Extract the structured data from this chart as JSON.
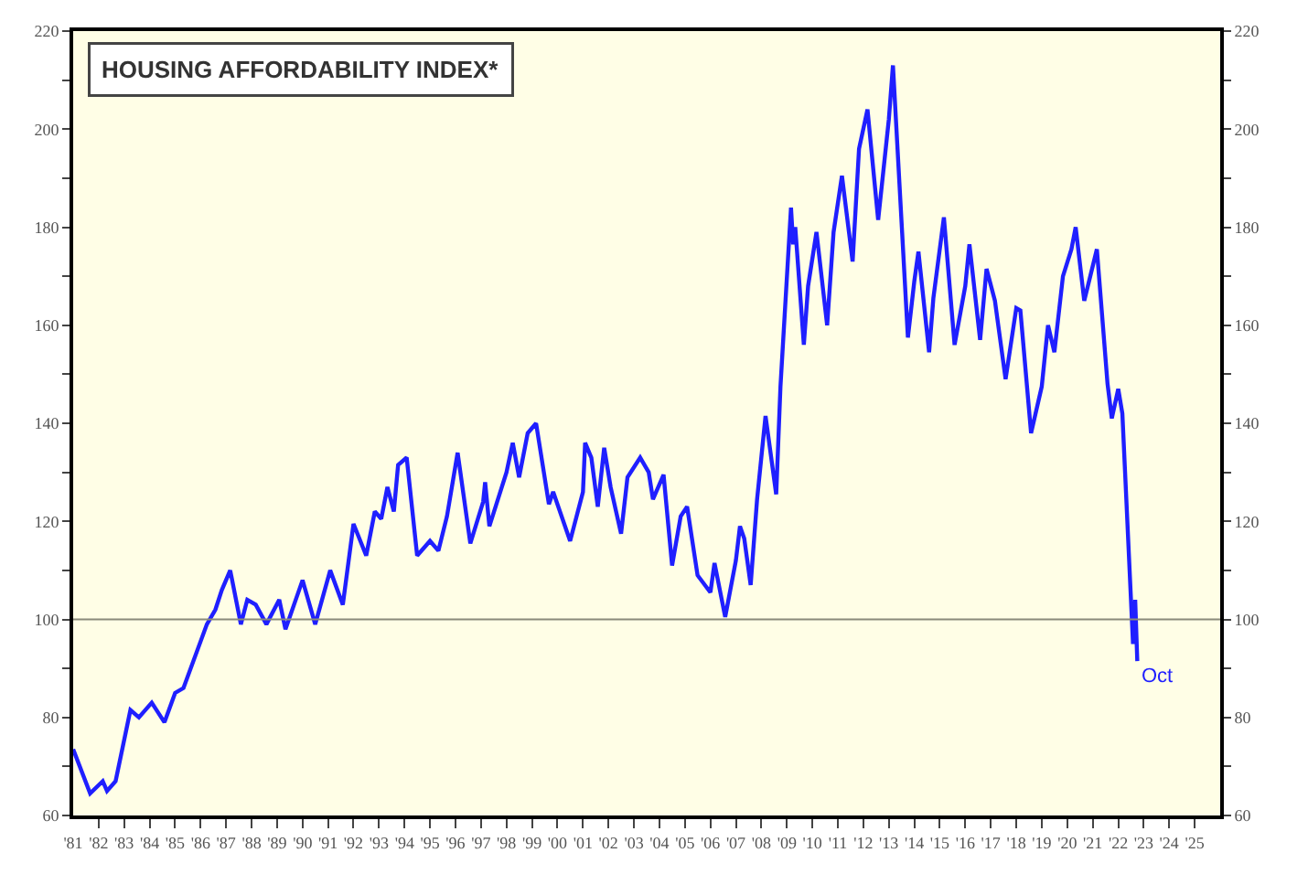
{
  "chart_data": {
    "type": "line",
    "title": "HOUSING AFFORDABILITY INDEX*",
    "x": [
      "1981-01",
      "1981-09",
      "1982-03",
      "1982-05",
      "1982-09",
      "1983-04",
      "1983-08",
      "1984-02",
      "1984-08",
      "1985-01",
      "1985-05",
      "1986-04",
      "1986-08",
      "1986-11",
      "1987-03",
      "1987-08",
      "1987-11",
      "1988-03",
      "1988-08",
      "1989-02",
      "1989-05",
      "1990-01",
      "1990-07",
      "1991-02",
      "1991-08",
      "1992-01",
      "1992-07",
      "1992-11",
      "1993-02",
      "1993-05",
      "1993-08",
      "1993-10",
      "1994-02",
      "1994-07",
      "1995-01",
      "1995-05",
      "1995-09",
      "1996-02",
      "1996-08",
      "1997-02",
      "1997-03",
      "1997-05",
      "1998-01",
      "1998-04",
      "1998-07",
      "1998-11",
      "1999-03",
      "1999-09",
      "1999-11",
      "2000-07",
      "2001-01",
      "2001-02",
      "2001-05",
      "2001-08",
      "2001-11",
      "2002-02",
      "2002-07",
      "2002-10",
      "2003-04",
      "2003-08",
      "2003-10",
      "2004-03",
      "2004-07",
      "2004-11",
      "2005-02",
      "2005-07",
      "2006-01",
      "2006-03",
      "2006-08",
      "2007-01",
      "2007-03",
      "2007-05",
      "2007-08",
      "2007-11",
      "2008-03",
      "2008-08",
      "2008-10",
      "2009-03",
      "2009-04",
      "2009-05",
      "2009-09",
      "2009-11",
      "2010-03",
      "2010-08",
      "2010-11",
      "2011-03",
      "2011-08",
      "2011-11",
      "2012-03",
      "2012-08",
      "2013-01",
      "2013-03",
      "2013-10",
      "2014-01",
      "2014-03",
      "2014-08",
      "2014-10",
      "2015-03",
      "2015-08",
      "2016-01",
      "2016-03",
      "2016-08",
      "2016-11",
      "2017-03",
      "2017-08",
      "2018-01",
      "2018-03",
      "2018-08",
      "2019-01",
      "2019-04",
      "2019-07",
      "2019-11",
      "2020-03",
      "2020-05",
      "2020-09",
      "2021-03",
      "2021-08",
      "2021-10",
      "2022-01",
      "2022-03",
      "2022-08",
      "2022-09",
      "2022-10"
    ],
    "series": [
      {
        "color": "#1f1fff",
        "values": [
          73.5,
          64.5,
          67,
          65,
          67,
          81.5,
          80,
          83,
          79,
          85,
          86,
          99,
          102,
          106,
          110,
          99,
          104,
          103,
          99,
          104,
          98,
          108,
          99,
          110,
          103,
          119.5,
          113,
          122,
          120.5,
          127,
          122,
          131.5,
          133,
          113,
          116,
          114,
          121,
          134,
          115.5,
          124,
          128,
          119,
          130,
          136,
          129,
          138,
          140,
          123.5,
          126,
          116,
          126,
          136,
          133,
          123,
          135,
          127,
          117.5,
          129,
          133,
          130,
          124.5,
          129.5,
          111,
          121,
          123,
          109,
          105.5,
          111.5,
          100.5,
          112,
          119,
          116.5,
          107,
          124.5,
          141.5,
          125.5,
          147.5,
          184,
          176.5,
          180,
          156,
          168,
          179,
          160,
          179,
          190.5,
          173,
          196,
          204,
          181.5,
          202,
          213,
          157.5,
          169,
          175,
          154.5,
          165.5,
          182,
          156,
          168,
          176.5,
          157,
          171.5,
          165,
          149,
          163.5,
          163,
          138,
          147.5,
          160,
          154.5,
          170,
          175.5,
          180,
          165,
          175.5,
          148,
          141,
          147,
          142,
          95,
          104,
          91.5
        ]
      }
    ],
    "xlim": [
      "1981",
      "2026"
    ],
    "xticks": [
      {
        "value": "1981",
        "label": "'81"
      },
      {
        "value": "1982",
        "label": "'82"
      },
      {
        "value": "1983",
        "label": "'83"
      },
      {
        "value": "1984",
        "label": "'84"
      },
      {
        "value": "1985",
        "label": "'85"
      },
      {
        "value": "1986",
        "label": "'86"
      },
      {
        "value": "1987",
        "label": "'87"
      },
      {
        "value": "1988",
        "label": "'88"
      },
      {
        "value": "1989",
        "label": "'89"
      },
      {
        "value": "1990",
        "label": "'90"
      },
      {
        "value": "1991",
        "label": "'91"
      },
      {
        "value": "1992",
        "label": "'92"
      },
      {
        "value": "1993",
        "label": "'93"
      },
      {
        "value": "1994",
        "label": "'94"
      },
      {
        "value": "1995",
        "label": "'95"
      },
      {
        "value": "1996",
        "label": "'96"
      },
      {
        "value": "1997",
        "label": "'97"
      },
      {
        "value": "1998",
        "label": "'98"
      },
      {
        "value": "1999",
        "label": "'99"
      },
      {
        "value": "2000",
        "label": "'00"
      },
      {
        "value": "2001",
        "label": "'01"
      },
      {
        "value": "2002",
        "label": "'02"
      },
      {
        "value": "2003",
        "label": "'03"
      },
      {
        "value": "2004",
        "label": "'04"
      },
      {
        "value": "2005",
        "label": "'05"
      },
      {
        "value": "2006",
        "label": "'06"
      },
      {
        "value": "2007",
        "label": "'07"
      },
      {
        "value": "2008",
        "label": "'08"
      },
      {
        "value": "2009",
        "label": "'09"
      },
      {
        "value": "2010",
        "label": "'10"
      },
      {
        "value": "2011",
        "label": "'11"
      },
      {
        "value": "2012",
        "label": "'12"
      },
      {
        "value": "2013",
        "label": "'13"
      },
      {
        "value": "2014",
        "label": "'14"
      },
      {
        "value": "2015",
        "label": "'15"
      },
      {
        "value": "2016",
        "label": "'16"
      },
      {
        "value": "2017",
        "label": "'17"
      },
      {
        "value": "2018",
        "label": "'18"
      },
      {
        "value": "2019",
        "label": "'19"
      },
      {
        "value": "2020",
        "label": "'20"
      },
      {
        "value": "2021",
        "label": "'21"
      },
      {
        "value": "2022",
        "label": "'22"
      },
      {
        "value": "2023",
        "label": "'23"
      },
      {
        "value": "2024",
        "label": "'24"
      },
      {
        "value": "2025",
        "label": "'25"
      }
    ],
    "ylim": [
      60,
      220
    ],
    "yticks": [
      60,
      {
        "value": 70,
        "label": null
      },
      80,
      {
        "value": 90,
        "label": null
      },
      100,
      {
        "value": 110,
        "label": null
      },
      120,
      {
        "value": 130,
        "label": null
      },
      140,
      {
        "value": 150,
        "label": null
      },
      160,
      {
        "value": 170,
        "label": null
      },
      180,
      {
        "value": 190,
        "label": null
      },
      200,
      {
        "value": 210,
        "label": null
      },
      220
    ],
    "y2lim": [
      60,
      220
    ],
    "y2ticks": [
      60,
      {
        "value": 70,
        "label": null
      },
      80,
      {
        "value": 90,
        "label": null
      },
      100,
      {
        "value": 110,
        "label": null
      },
      120,
      {
        "value": 130,
        "label": null
      },
      140,
      {
        "value": 150,
        "label": null
      },
      160,
      {
        "value": 170,
        "label": null
      },
      180,
      {
        "value": 190,
        "label": null
      },
      200,
      {
        "value": 210,
        "label": null
      },
      220
    ],
    "ref_lines": [
      {
        "axis": "y",
        "value": 100,
        "color": "#8a8a7a"
      }
    ],
    "annotations": [
      {
        "text": "Oct",
        "x": "2022-10",
        "y": 91.5
      }
    ],
    "grid": false,
    "marker": "none",
    "line_style": "solid"
  }
}
